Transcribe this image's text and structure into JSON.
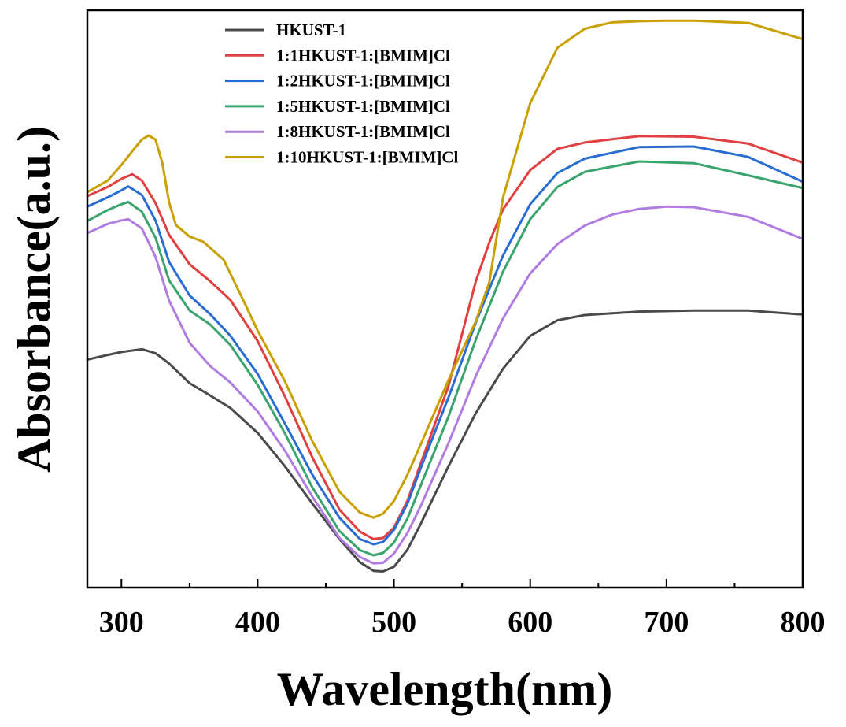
{
  "chart_data": {
    "type": "line",
    "xlabel": "Wavelength(nm)",
    "ylabel": "Absorbance(a.u.)",
    "xlim": [
      275,
      800
    ],
    "ylim": [
      0,
      100
    ],
    "xticks": [
      300,
      400,
      500,
      600,
      700,
      800
    ],
    "xtick_labels": [
      "300",
      "400",
      "500",
      "600",
      "700",
      "800"
    ],
    "y_tick_labels_shown": false,
    "legend_position": "top-center",
    "series": [
      {
        "name": "HKUST-1",
        "color": "#4a4a4a",
        "x": [
          275,
          290,
          300,
          315,
          325,
          335,
          350,
          365,
          380,
          400,
          420,
          440,
          460,
          475,
          485,
          492,
          500,
          510,
          520,
          540,
          560,
          580,
          600,
          620,
          640,
          680,
          720,
          760,
          800
        ],
        "y": [
          39.5,
          40.3,
          40.8,
          41.3,
          40.6,
          38.8,
          35.4,
          33.3,
          31.1,
          26.8,
          21.0,
          14.6,
          8.4,
          4.4,
          2.9,
          2.8,
          3.6,
          6.6,
          11.2,
          21.0,
          30.2,
          37.9,
          43.6,
          46.3,
          47.2,
          47.8,
          48.0,
          48.0,
          47.3
        ]
      },
      {
        "name": "1:1HKUST-1:[BMIM]Cl",
        "color": "#e04040",
        "x": [
          275,
          290,
          300,
          308,
          315,
          325,
          335,
          350,
          365,
          380,
          400,
          420,
          440,
          460,
          475,
          485,
          492,
          500,
          510,
          520,
          540,
          560,
          570,
          580,
          600,
          620,
          640,
          680,
          720,
          760,
          800
        ],
        "y": [
          67.8,
          69.4,
          70.8,
          71.6,
          70.5,
          66.6,
          61.1,
          56.0,
          53.1,
          49.8,
          42.7,
          33.1,
          22.6,
          13.5,
          9.7,
          8.4,
          8.6,
          10.4,
          15.1,
          21.7,
          34.9,
          53.0,
          59.8,
          65.5,
          72.3,
          76.0,
          77.1,
          78.2,
          78.1,
          76.9,
          73.6
        ]
      },
      {
        "name": "1:2HKUST-1:[BMIM]Cl",
        "color": "#2a6dd2",
        "x": [
          275,
          290,
          300,
          305,
          315,
          325,
          335,
          350,
          365,
          380,
          400,
          420,
          440,
          460,
          475,
          485,
          492,
          500,
          510,
          520,
          540,
          560,
          580,
          600,
          620,
          640,
          680,
          720,
          760,
          800
        ],
        "y": [
          66.0,
          67.6,
          68.8,
          69.5,
          68.0,
          63.6,
          56.4,
          50.6,
          47.4,
          43.6,
          37.0,
          28.4,
          19.6,
          12.1,
          8.4,
          7.5,
          7.9,
          10.0,
          14.6,
          20.9,
          32.9,
          45.9,
          57.5,
          66.4,
          71.8,
          74.3,
          76.3,
          76.4,
          74.6,
          70.3
        ]
      },
      {
        "name": "1:5HKUST-1:[BMIM]Cl",
        "color": "#3aa46e",
        "x": [
          275,
          290,
          300,
          305,
          315,
          325,
          335,
          350,
          365,
          380,
          400,
          420,
          440,
          460,
          475,
          485,
          492,
          500,
          510,
          520,
          540,
          560,
          580,
          600,
          620,
          640,
          680,
          720,
          760,
          800
        ],
        "y": [
          63.5,
          65.4,
          66.4,
          66.8,
          65.1,
          60.6,
          53.2,
          48.0,
          45.6,
          42.0,
          35.1,
          26.7,
          17.4,
          9.8,
          6.5,
          5.6,
          6.0,
          7.8,
          12.0,
          17.9,
          29.6,
          42.9,
          54.7,
          63.8,
          69.4,
          72.0,
          73.8,
          73.5,
          71.4,
          69.2
        ]
      },
      {
        "name": "1:8HKUST-1:[BMIM]Cl",
        "color": "#b07ce0",
        "x": [
          275,
          290,
          300,
          305,
          315,
          325,
          335,
          350,
          365,
          380,
          400,
          420,
          440,
          460,
          475,
          485,
          492,
          500,
          510,
          520,
          540,
          560,
          580,
          600,
          620,
          640,
          660,
          680,
          700,
          720,
          760,
          800
        ],
        "y": [
          61.4,
          63.0,
          63.6,
          63.8,
          62.2,
          57.3,
          49.7,
          42.4,
          38.4,
          35.5,
          30.5,
          23.7,
          15.8,
          8.6,
          5.3,
          4.2,
          4.3,
          5.9,
          9.5,
          14.3,
          25.0,
          36.6,
          46.6,
          54.4,
          59.5,
          62.7,
          64.6,
          65.6,
          66.0,
          65.9,
          64.2,
          60.4
        ]
      },
      {
        "name": "1:10HKUST-1:[BMIM]Cl",
        "color": "#c8a000",
        "x": [
          275,
          290,
          300,
          310,
          315,
          320,
          325,
          330,
          335,
          340,
          350,
          360,
          375,
          390,
          400,
          420,
          440,
          460,
          475,
          485,
          492,
          500,
          510,
          520,
          540,
          560,
          570,
          580,
          600,
          620,
          640,
          660,
          680,
          700,
          720,
          760,
          800
        ],
        "y": [
          68.5,
          70.5,
          73.2,
          76.2,
          77.6,
          78.3,
          77.6,
          73.6,
          66.7,
          62.8,
          60.8,
          59.9,
          56.8,
          49.5,
          44.5,
          35.7,
          25.4,
          16.6,
          13.0,
          12.1,
          12.8,
          15.0,
          19.6,
          25.0,
          35.9,
          46.1,
          52.9,
          67.5,
          83.9,
          93.5,
          96.8,
          97.9,
          98.1,
          98.2,
          98.2,
          97.8,
          95.0
        ]
      }
    ]
  }
}
